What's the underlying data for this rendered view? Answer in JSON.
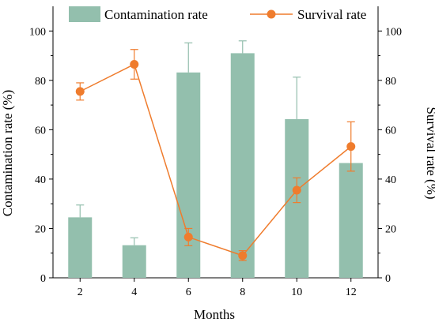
{
  "chart_data": {
    "type": "bar",
    "categories": [
      "2",
      "4",
      "6",
      "8",
      "10",
      "12"
    ],
    "series": [
      {
        "name": "Contamination rate",
        "type": "bar",
        "axis": "left",
        "color": "#93bfad",
        "error_color": "#93bfad",
        "values": [
          24.5,
          13.2,
          83.2,
          91.0,
          64.3,
          46.5
        ],
        "errors": [
          5.0,
          3.0,
          12.0,
          5.0,
          17.0,
          0
        ]
      },
      {
        "name": "Survival rate",
        "type": "line",
        "axis": "right",
        "color": "#ef7c2d",
        "values": [
          75.5,
          86.5,
          16.5,
          9.0,
          35.5,
          53.2
        ],
        "errors": [
          3.5,
          6.0,
          3.5,
          2.0,
          5.0,
          10.0
        ]
      }
    ],
    "xlabel": "Months",
    "ylabel_left": "Contamination rate (%)",
    "ylabel_right": "Survival rate (%)",
    "ylim": [
      0,
      110
    ],
    "yticks": [
      "0",
      "20",
      "40",
      "60",
      "80",
      "100"
    ],
    "legend_position": "top"
  }
}
